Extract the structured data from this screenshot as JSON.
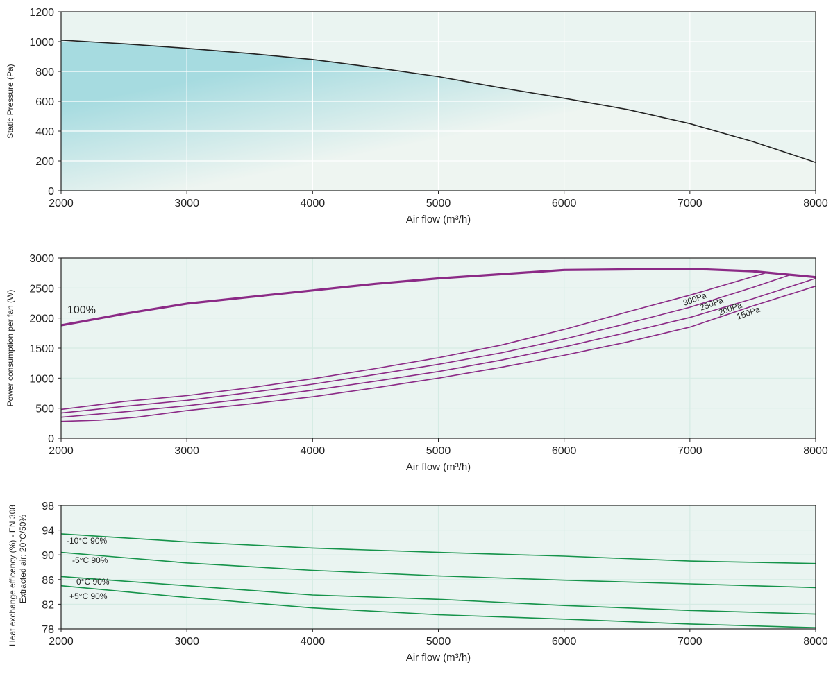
{
  "chart_data": [
    {
      "type": "area",
      "xlabel": "Air flow (m³/h)",
      "ylabel": "Static Pressure (Pa)",
      "xlim": [
        2000,
        8000
      ],
      "ylim": [
        0,
        1200
      ],
      "x_ticks": [
        2000,
        3000,
        4000,
        5000,
        6000,
        7000,
        8000
      ],
      "y_ticks": [
        0,
        200,
        400,
        600,
        800,
        1000,
        1200
      ],
      "grid": true,
      "colors": {
        "fill": "#a6dbe0",
        "fill_light": "#eef5f1",
        "line": "#222222",
        "background": "#eaf4f1",
        "grid": "#ffffff"
      },
      "series": [
        {
          "x": [
            2000,
            2500,
            3000,
            3500,
            4000,
            4500,
            5000,
            5500,
            6000,
            6500,
            7000,
            7500,
            8000
          ],
          "y": [
            1010,
            985,
            955,
            920,
            880,
            825,
            765,
            690,
            620,
            545,
            450,
            330,
            190
          ]
        }
      ]
    },
    {
      "type": "line",
      "xlabel": "Air flow (m³/h)",
      "ylabel": "Power consumption per fan (W)",
      "xlim": [
        2000,
        8000
      ],
      "ylim": [
        0,
        3000
      ],
      "x_ticks": [
        2000,
        3000,
        4000,
        5000,
        6000,
        7000,
        8000
      ],
      "y_ticks": [
        0,
        500,
        1000,
        1500,
        2000,
        2500,
        3000
      ],
      "grid": true,
      "colors": {
        "line": "#8b2a86",
        "background": "#eaf4f1",
        "grid": "#d5ebe4"
      },
      "series": [
        {
          "name": "100%",
          "x": [
            2000,
            2500,
            3000,
            3500,
            4000,
            4500,
            5000,
            5500,
            6000,
            6500,
            7000,
            7500,
            8000
          ],
          "y": [
            1880,
            2070,
            2240,
            2350,
            2460,
            2570,
            2660,
            2730,
            2800,
            2810,
            2820,
            2780,
            2680
          ]
        },
        {
          "name": "300Pa",
          "x": [
            2000,
            2500,
            3000,
            3500,
            4000,
            4500,
            5000,
            5500,
            6000,
            6500,
            7000,
            7600
          ],
          "y": [
            480,
            610,
            710,
            840,
            990,
            1160,
            1340,
            1550,
            1810,
            2100,
            2380,
            2750
          ]
        },
        {
          "name": "250Pa",
          "x": [
            2000,
            2500,
            3000,
            3500,
            4000,
            4500,
            5000,
            5500,
            6000,
            6500,
            7000,
            7500,
            7800
          ],
          "y": [
            420,
            530,
            630,
            760,
            900,
            1060,
            1230,
            1420,
            1650,
            1910,
            2180,
            2510,
            2720
          ]
        },
        {
          "name": "200Pa",
          "x": [
            2000,
            2500,
            3000,
            3500,
            4000,
            4500,
            5000,
            5500,
            6000,
            6500,
            7000,
            7500,
            8000
          ],
          "y": [
            350,
            440,
            540,
            660,
            800,
            950,
            1110,
            1300,
            1520,
            1760,
            2010,
            2320,
            2660
          ]
        },
        {
          "name": "150Pa",
          "x": [
            2000,
            2300,
            2600,
            3000,
            3500,
            4000,
            4500,
            5000,
            5500,
            6000,
            6500,
            7000,
            7500,
            8000
          ],
          "y": [
            280,
            300,
            350,
            460,
            570,
            690,
            840,
            1000,
            1180,
            1380,
            1600,
            1850,
            2200,
            2530
          ]
        }
      ],
      "annotations": [
        "100%",
        "300Pa",
        "250Pa",
        "200Pa",
        "150Pa"
      ]
    },
    {
      "type": "line",
      "xlabel": "Air flow (m³/h)",
      "ylabel": "Heat exchange efficency (%) - EN 308",
      "ylabel2": "Extracted air: 20°C/50%",
      "xlim": [
        2000,
        8000
      ],
      "ylim": [
        78,
        98
      ],
      "x_ticks": [
        2000,
        3000,
        4000,
        5000,
        6000,
        7000,
        8000
      ],
      "y_ticks": [
        78,
        82,
        86,
        90,
        94,
        98
      ],
      "grid": true,
      "colors": {
        "line": "#15934a",
        "background": "#eaf4f1",
        "grid": "#d5ebe4"
      },
      "series": [
        {
          "name": "-10°C 90%",
          "x": [
            2000,
            3000,
            4000,
            5000,
            6000,
            7000,
            8000
          ],
          "y": [
            93.4,
            92.1,
            91.1,
            90.4,
            89.8,
            89.0,
            88.6
          ]
        },
        {
          "name": "-5°C 90%",
          "x": [
            2000,
            3000,
            4000,
            5000,
            6000,
            7000,
            8000
          ],
          "y": [
            90.4,
            88.7,
            87.5,
            86.6,
            85.9,
            85.3,
            84.7
          ]
        },
        {
          "name": "0°C 90%",
          "x": [
            2000,
            3000,
            4000,
            5000,
            6000,
            7000,
            8000
          ],
          "y": [
            86.5,
            85.0,
            83.5,
            82.8,
            81.8,
            81.0,
            80.4
          ]
        },
        {
          "name": "+5°C 90%",
          "x": [
            2000,
            3000,
            4000,
            5000,
            6000,
            7000,
            8000
          ],
          "y": [
            85.0,
            83.1,
            81.4,
            80.3,
            79.6,
            78.8,
            78.2
          ]
        }
      ]
    }
  ]
}
